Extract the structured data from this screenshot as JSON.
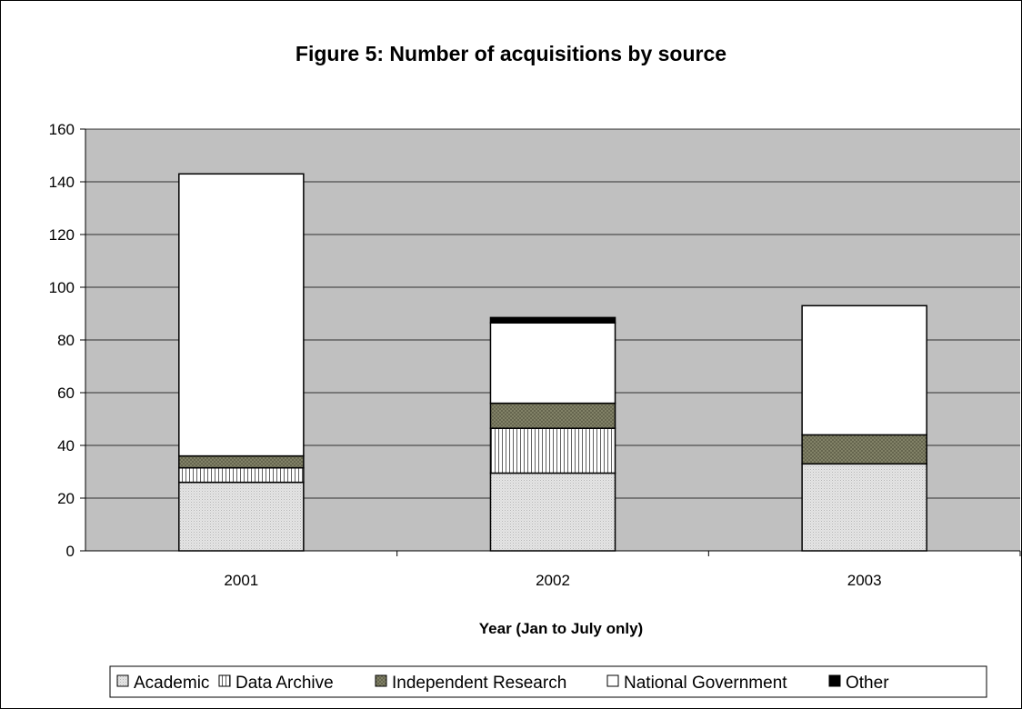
{
  "chart_data": {
    "type": "bar",
    "stacked": true,
    "title": "Figure 5: Number of acquisitions by source",
    "xlabel": "Year (Jan to July only)",
    "ylabel": "",
    "ylim": [
      0,
      160
    ],
    "yticks": [
      "0",
      "20",
      "40",
      "60",
      "80",
      "100",
      "120",
      "140",
      "160"
    ],
    "grid": true,
    "legend_position": "bottom",
    "categories": [
      "2001",
      "2002",
      "2003"
    ],
    "series": [
      {
        "name": "Academic",
        "values": [
          26,
          29.5,
          33
        ],
        "color": "#e0e0e0",
        "pattern": "dots"
      },
      {
        "name": "Data Archive",
        "values": [
          5.5,
          17,
          0
        ],
        "color": "#ffffff",
        "pattern": "vlines"
      },
      {
        "name": "Independent Research",
        "values": [
          4.5,
          9.5,
          11
        ],
        "color": "#8c8c70",
        "pattern": "crosshatch"
      },
      {
        "name": "National Government",
        "values": [
          107,
          30.5,
          49
        ],
        "color": "#ffffff",
        "pattern": "none"
      },
      {
        "name": "Other",
        "values": [
          0,
          2,
          0
        ],
        "color": "#000000",
        "pattern": "none"
      }
    ],
    "plot_background": "#c0c0c0"
  }
}
